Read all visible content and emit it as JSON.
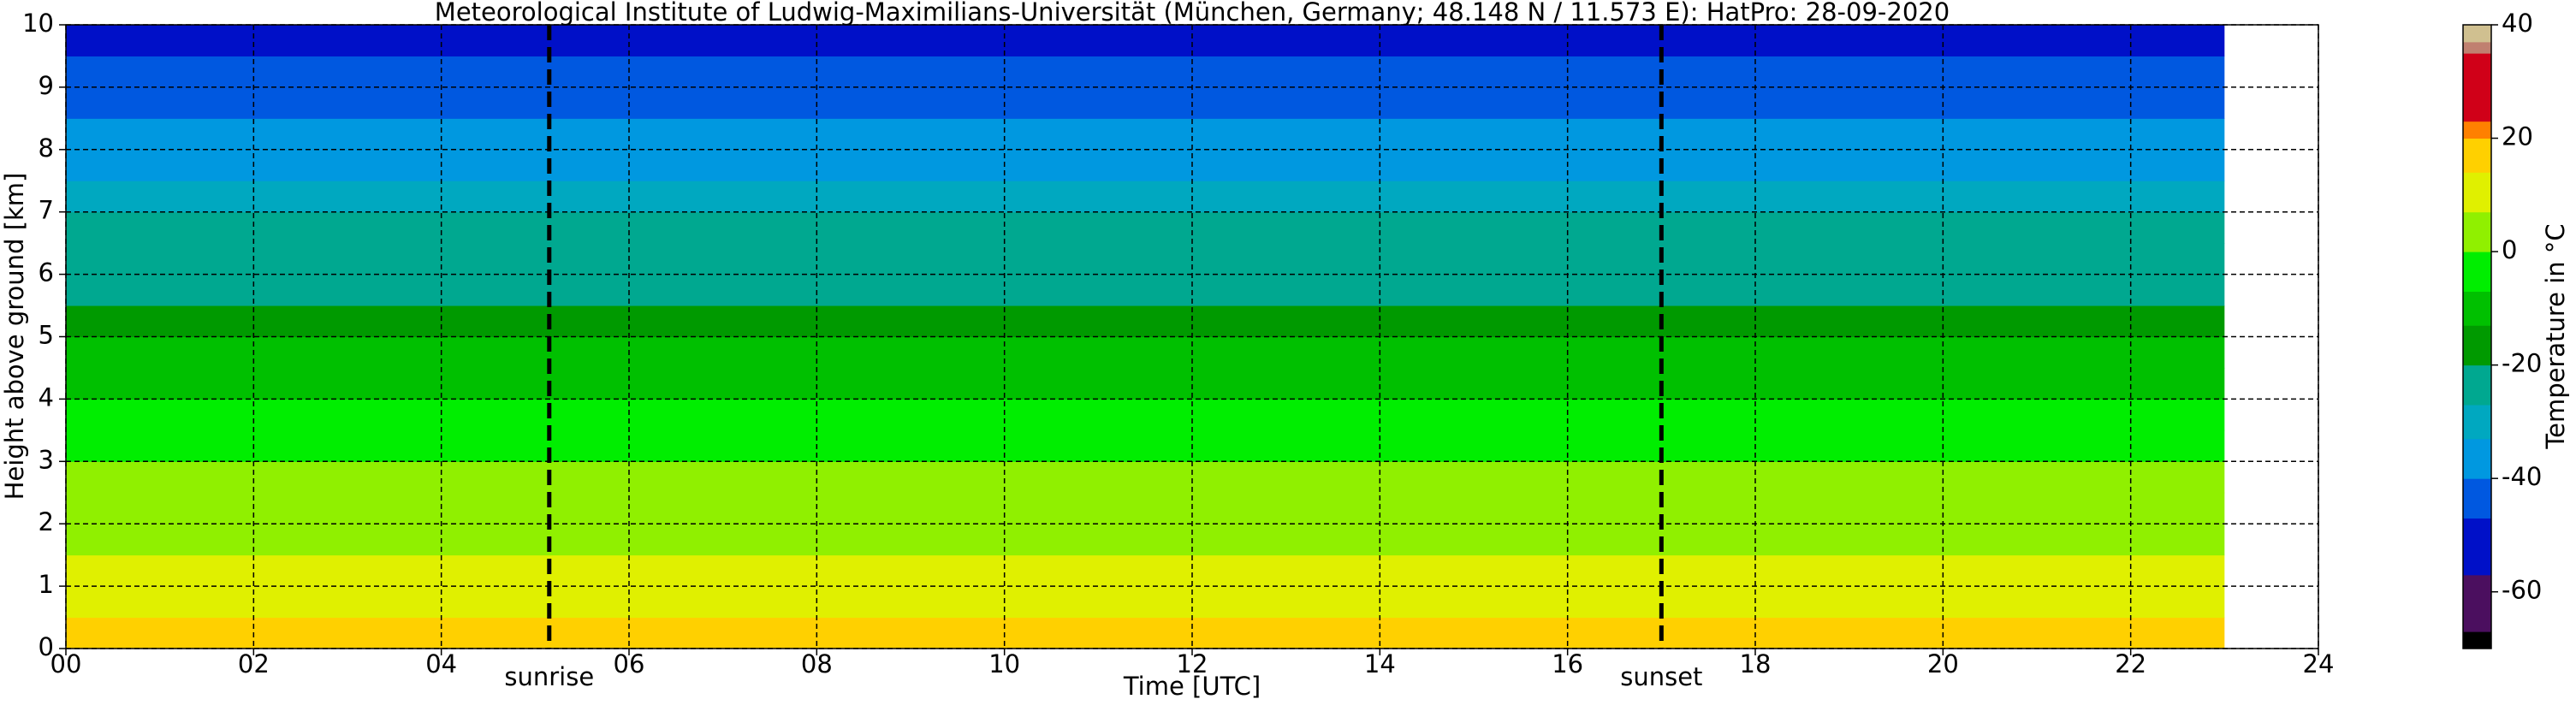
{
  "chart_data": {
    "type": "heatmap",
    "title": "Meteorological Institute of Ludwig-Maximilians-Universität (München, Germany; 48.148 N / 11.573 E):    HatPro: 28-09-2020",
    "xlabel": "Time [UTC]",
    "ylabel": "Height above ground [km]",
    "x_extent": [
      0,
      23
    ],
    "y_edges": [
      0,
      0.5,
      1,
      1.5,
      2,
      2.5,
      3,
      3.5,
      4,
      4.5,
      5,
      5.5,
      6,
      6.5,
      7,
      7.5,
      8,
      8.5,
      9,
      9.5,
      10
    ],
    "values": [
      15,
      12,
      9,
      6,
      3,
      0,
      -3,
      -6,
      -9,
      -12,
      -15,
      -21,
      -24,
      -27,
      -31,
      -34,
      -38,
      -43,
      -47,
      -51
    ],
    "xlim": [
      0,
      24
    ],
    "xticks": [
      {
        "value": 0,
        "label": "00"
      },
      {
        "value": 2,
        "label": "02"
      },
      {
        "value": 4,
        "label": "04"
      },
      {
        "value": 6,
        "label": "06"
      },
      {
        "value": 8,
        "label": "08"
      },
      10,
      12,
      14,
      16,
      18,
      20,
      22,
      24
    ],
    "ylim": [
      0,
      10
    ],
    "yticks": [
      0,
      1,
      2,
      3,
      4,
      5,
      6,
      7,
      8,
      9,
      10
    ],
    "grid": true,
    "annotations": [
      {
        "x": 5.15,
        "text": "sunrise"
      },
      {
        "x": 17.0,
        "text": "sunset"
      }
    ],
    "colorbar": {
      "label": "Temperature in $^\\circ$C",
      "clim": [
        -70,
        40
      ],
      "ticks": [
        -60,
        -40,
        -20,
        0,
        20,
        40
      ],
      "boundaries": [
        -70,
        -67,
        -57,
        -47,
        -40,
        -33,
        -27,
        -20,
        -13,
        -7,
        0,
        7,
        14,
        20,
        23,
        35,
        37,
        40
      ],
      "colors": [
        "#000000",
        "#4b0f5f",
        "#0010c8",
        "#0058e0",
        "#0098e0",
        "#00a8c0",
        "#00a890",
        "#009a00",
        "#00c000",
        "#00ee00",
        "#90f000",
        "#e0f000",
        "#ffd000",
        "#ff8000",
        "#d00018",
        "#c08070",
        "#d0c090"
      ]
    }
  }
}
